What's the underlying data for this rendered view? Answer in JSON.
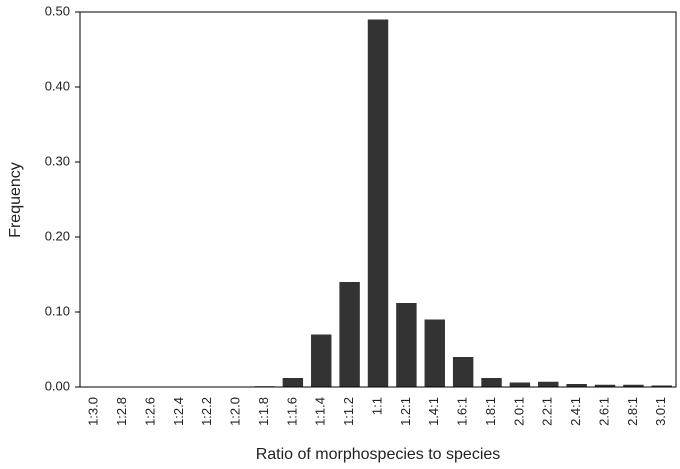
{
  "chart_data": {
    "type": "bar",
    "x_label": "Ratio of morphospecies to species",
    "y_label": "Frequency",
    "categories": [
      "1:3.0",
      "1:2.8",
      "1:2.6",
      "1:2.4",
      "1:2.2",
      "1:2.0",
      "1:1.8",
      "1:1.6",
      "1:1.4",
      "1:1.2",
      "1:1",
      "1.2:1",
      "1.4:1",
      "1.6:1",
      "1.8:1",
      "2.0:1",
      "2.2:1",
      "2.4:1",
      "2.6:1",
      "2.8:1",
      "3.0:1"
    ],
    "values": [
      0,
      0,
      0,
      0,
      0,
      0,
      0.001,
      0.012,
      0.07,
      0.14,
      0.49,
      0.112,
      0.09,
      0.04,
      0.012,
      0.006,
      0.007,
      0.004,
      0.003,
      0.003,
      0.002
    ],
    "color": "#333333",
    "ylim": [
      0,
      0.5
    ],
    "yticks": [
      {
        "value": 0,
        "label": "0.00"
      },
      {
        "value": 0.1,
        "label": "0.10"
      },
      {
        "value": 0.2,
        "label": "0.20"
      },
      {
        "value": 0.3,
        "label": "0.30"
      },
      {
        "value": 0.4,
        "label": "0.40"
      },
      {
        "value": 0.5,
        "label": "0.50"
      }
    ],
    "grid": false
  }
}
